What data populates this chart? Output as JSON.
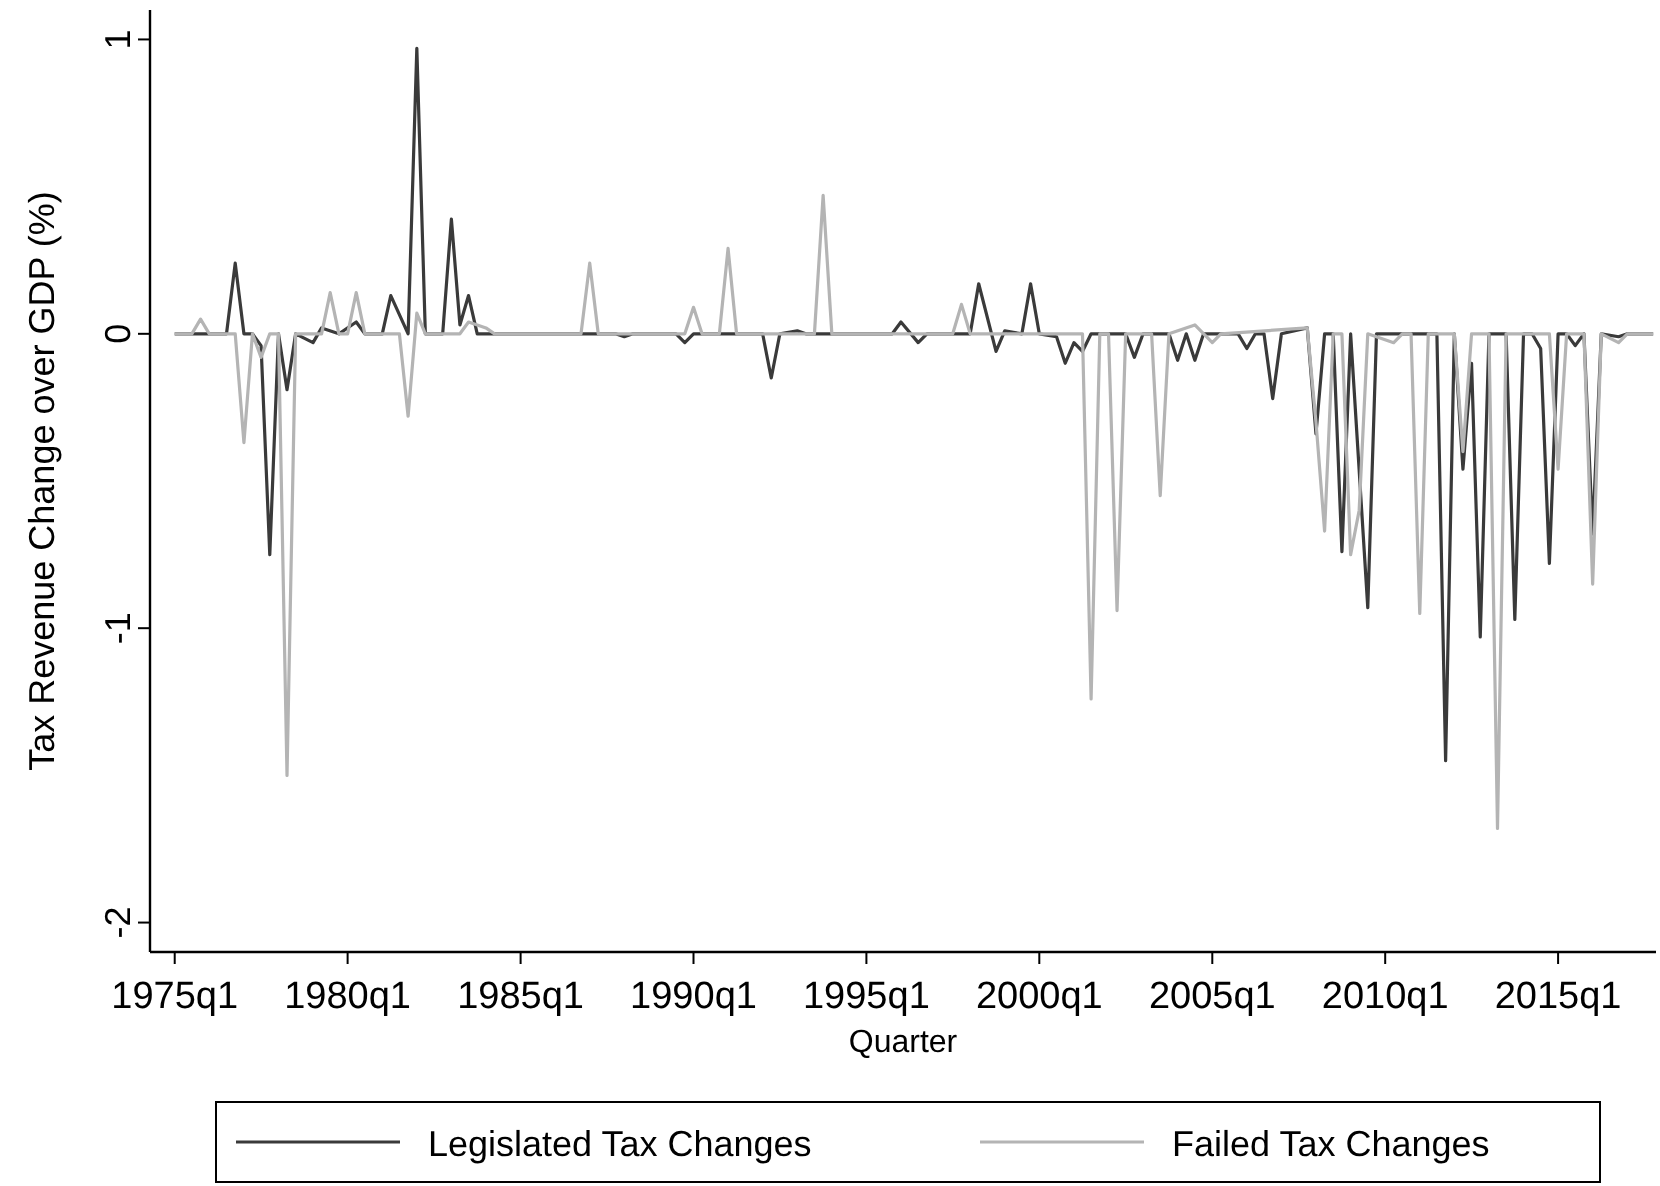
{
  "chart_data": {
    "type": "line",
    "xlabel": "Quarter",
    "ylabel": "Tax Revenue Change over GDP (%)",
    "xlim": [
      "1974-04-15",
      "2017-10-31"
    ],
    "ylim": [
      -2.1,
      1.1
    ],
    "xticks": [
      {
        "value": "1975-01",
        "label": "1975q1"
      },
      {
        "value": "1980-01",
        "label": "1980q1"
      },
      {
        "value": "1985-01",
        "label": "1985q1"
      },
      {
        "value": "1990-01",
        "label": "1990q1"
      },
      {
        "value": "1995-01",
        "label": "1995q1"
      },
      {
        "value": "2000-01",
        "label": "2000q1"
      },
      {
        "value": "2005-01",
        "label": "2005q1"
      },
      {
        "value": "2010-01",
        "label": "2010q1"
      },
      {
        "value": "2015-01",
        "label": "2015q1"
      }
    ],
    "yticks": [
      -2,
      -1,
      0,
      1
    ],
    "grid": false,
    "legend": "bottom",
    "marker": "none",
    "line_style": "solid",
    "series": [
      {
        "name": "Legislated Tax Changes",
        "color": "#3a3a3a",
        "x": [
          "1975-01",
          "1976-07",
          "1976-10",
          "1977-01",
          "1977-04",
          "1977-07",
          "1977-10",
          "1978-01",
          "1978-04",
          "1978-07",
          "1979-01",
          "1979-04",
          "1979-10",
          "1980-04",
          "1980-07",
          "1981-01",
          "1981-04",
          "1981-10",
          "1982-01",
          "1982-04",
          "1982-10",
          "1983-01",
          "1983-04",
          "1983-07",
          "1983-10",
          "1987-10",
          "1988-01",
          "1988-04",
          "1989-07",
          "1989-10",
          "1990-01",
          "1992-01",
          "1992-04",
          "1992-07",
          "1993-01",
          "1993-04",
          "1995-10",
          "1996-01",
          "1996-07",
          "1996-10",
          "1998-01",
          "1998-04",
          "1998-10",
          "1999-01",
          "1999-07",
          "1999-10",
          "2000-01",
          "2000-07",
          "2000-10",
          "2001-01",
          "2001-04",
          "2001-07",
          "2002-07",
          "2002-10",
          "2003-01",
          "2003-10",
          "2004-01",
          "2004-04",
          "2004-07",
          "2004-10",
          "2005-10",
          "2006-01",
          "2006-04",
          "2006-07",
          "2006-10",
          "2007-01",
          "2007-10",
          "2008-01",
          "2008-04",
          "2008-07",
          "2008-10",
          "2009-01",
          "2009-07",
          "2009-10",
          "2011-07",
          "2011-10",
          "2012-01",
          "2012-04",
          "2012-07",
          "2012-10",
          "2013-01",
          "2013-07",
          "2013-10",
          "2014-01",
          "2014-04",
          "2014-07",
          "2014-10",
          "2015-01",
          "2015-04",
          "2015-07",
          "2015-10",
          "2016-01",
          "2016-04",
          "2016-10",
          "2017-01",
          "2017-10"
        ],
        "values": [
          0,
          0,
          0.24,
          0,
          0,
          -0.04,
          -0.75,
          0,
          -0.19,
          0,
          -0.03,
          0.02,
          0,
          0.04,
          0,
          0,
          0.13,
          0,
          0.97,
          0,
          0,
          0.39,
          0.03,
          0.13,
          0,
          0,
          -0.01,
          0,
          0,
          -0.03,
          0,
          0,
          -0.15,
          0,
          0.01,
          0,
          0,
          0.04,
          -0.03,
          0,
          0,
          0.17,
          -0.06,
          0.01,
          0,
          0.17,
          0,
          -0.01,
          -0.1,
          -0.03,
          -0.06,
          0,
          0,
          -0.08,
          0,
          0,
          -0.09,
          0,
          -0.09,
          0,
          0,
          -0.05,
          0,
          0,
          -0.22,
          0,
          0.02,
          -0.34,
          0,
          0,
          -0.74,
          0,
          -0.93,
          0,
          0,
          -1.45,
          0,
          -0.46,
          -0.1,
          -1.03,
          0,
          0,
          -0.97,
          0,
          0,
          -0.05,
          -0.78,
          0,
          0,
          -0.04,
          0,
          -0.68,
          0,
          -0.01,
          0,
          0
        ]
      },
      {
        "name": "Failed Tax Changes",
        "color": "#b4b4b4",
        "x": [
          "1975-01",
          "1975-07",
          "1975-10",
          "1976-01",
          "1976-10",
          "1977-01",
          "1977-04",
          "1977-07",
          "1977-10",
          "1978-01",
          "1978-04",
          "1978-07",
          "1979-04",
          "1979-07",
          "1979-10",
          "1980-01",
          "1980-04",
          "1980-07",
          "1981-07",
          "1981-10",
          "1982-01",
          "1982-04",
          "1983-04",
          "1983-07",
          "1984-01",
          "1984-04",
          "1986-10",
          "1987-01",
          "1987-04",
          "1989-10",
          "1990-01",
          "1990-04",
          "1990-10",
          "1991-01",
          "1991-04",
          "1993-07",
          "1993-10",
          "1994-01",
          "1997-07",
          "1997-10",
          "1998-01",
          "2001-04",
          "2001-07",
          "2001-10",
          "2002-01",
          "2002-04",
          "2002-07",
          "2003-04",
          "2003-07",
          "2003-10",
          "2004-07",
          "2005-01",
          "2005-04",
          "2007-10",
          "2008-01",
          "2008-04",
          "2008-07",
          "2008-10",
          "2009-01",
          "2009-04",
          "2009-07",
          "2010-04",
          "2010-07",
          "2010-10",
          "2011-01",
          "2011-04",
          "2012-01",
          "2012-04",
          "2012-07",
          "2013-01",
          "2013-04",
          "2013-07",
          "2014-10",
          "2015-01",
          "2015-04",
          "2015-10",
          "2016-01",
          "2016-04",
          "2016-10",
          "2017-01",
          "2017-10"
        ],
        "values": [
          0,
          0,
          0.05,
          0,
          0,
          -0.37,
          0,
          -0.08,
          0,
          0,
          -1.5,
          0,
          0,
          0.14,
          0,
          0,
          0.14,
          0,
          0,
          -0.28,
          0.07,
          0,
          0,
          0.04,
          0.02,
          0,
          0,
          0.24,
          0,
          0,
          0.09,
          0,
          0,
          0.29,
          0,
          0,
          0.47,
          0,
          0,
          0.1,
          0,
          0,
          -1.24,
          0,
          0,
          -0.94,
          0,
          0,
          -0.55,
          0,
          0.03,
          -0.03,
          0,
          0.02,
          -0.3,
          -0.67,
          0,
          0,
          -0.75,
          -0.6,
          0,
          -0.03,
          0,
          0,
          -0.95,
          0,
          0,
          -0.4,
          0,
          0,
          -1.68,
          0,
          0,
          -0.46,
          0,
          0,
          -0.85,
          0,
          -0.03,
          0,
          0
        ]
      }
    ]
  }
}
